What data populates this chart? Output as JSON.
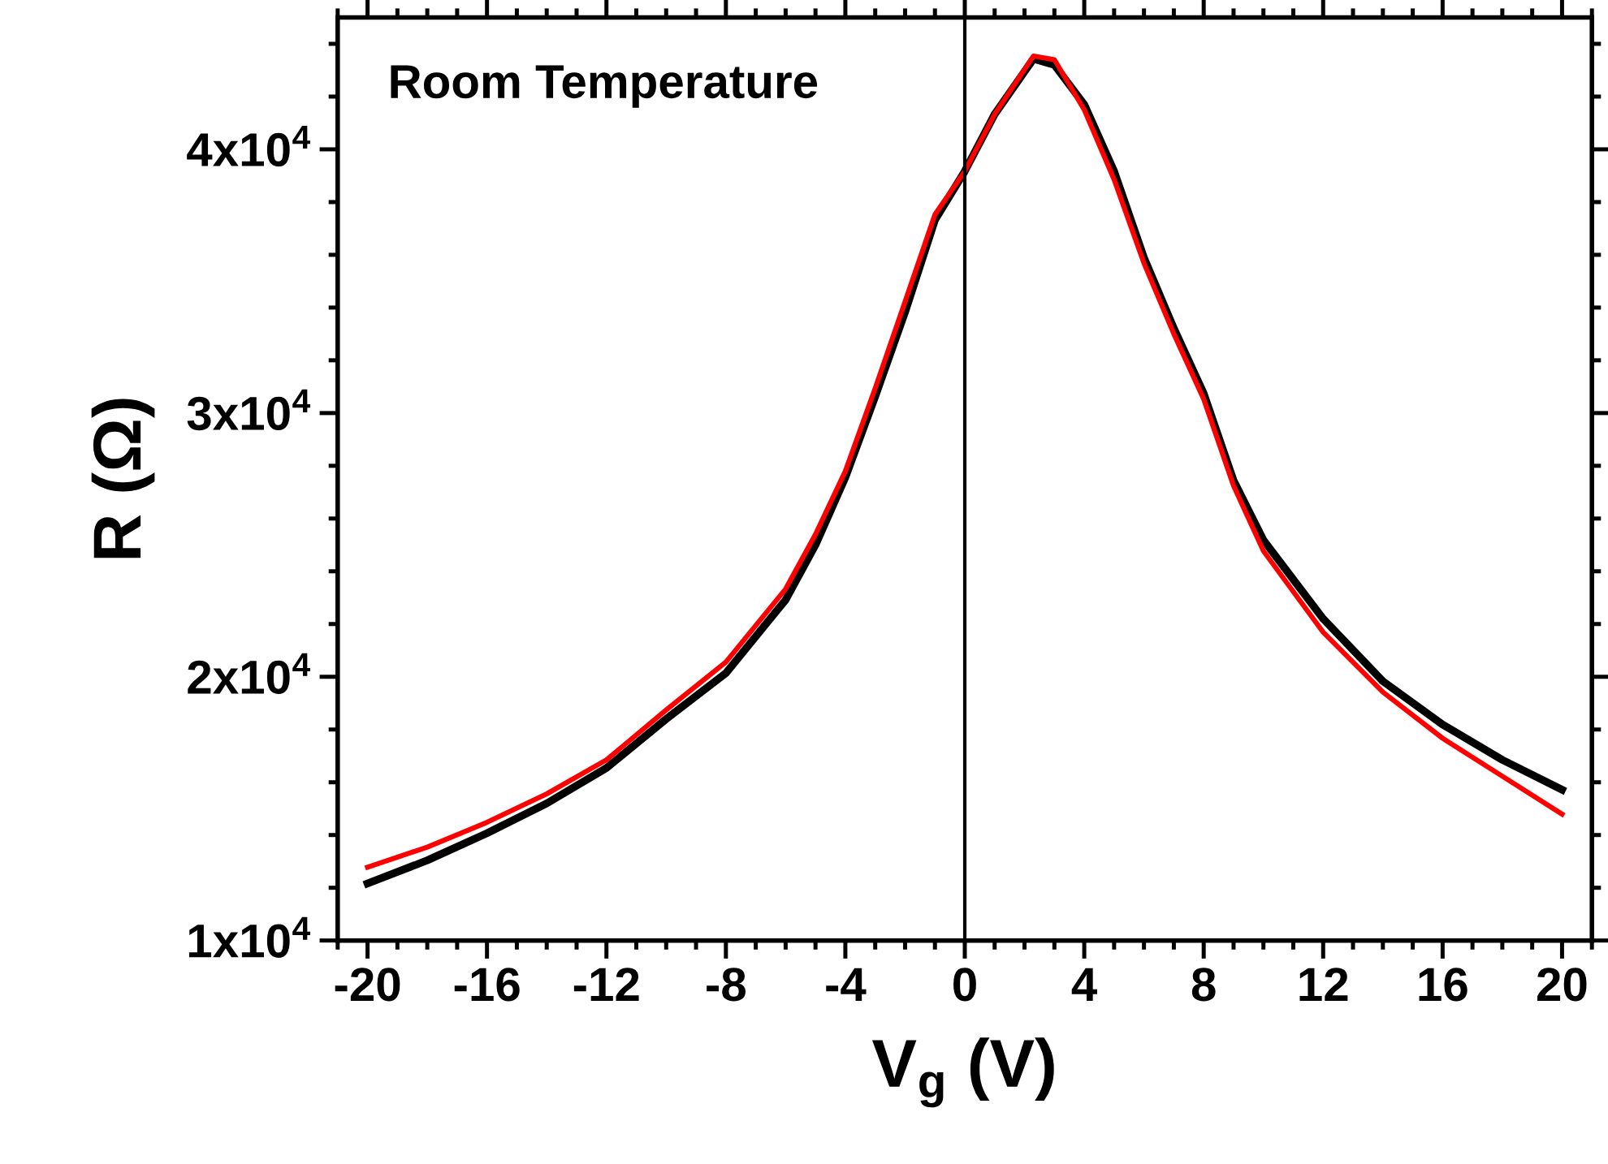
{
  "chart_data": {
    "type": "line",
    "xlabel": "V$_{g}$ (V)",
    "ylabel": "R (Ω)",
    "annotations": [
      "Room Temperature"
    ],
    "x": [
      -20,
      -18,
      -16,
      -14,
      -12,
      -10,
      -8,
      -6,
      -5,
      -4,
      -3,
      -2,
      -1,
      0,
      1,
      2.3,
      3,
      4,
      5,
      6,
      7,
      8,
      9,
      10,
      12,
      14,
      16,
      18,
      20
    ],
    "series": [
      {
        "color": "#000000",
        "values": [
          12160,
          13040,
          14070,
          15200,
          16540,
          18400,
          20140,
          22920,
          25000,
          27560,
          30630,
          33830,
          37320,
          39170,
          41330,
          43430,
          43200,
          41700,
          39170,
          35890,
          33210,
          30740,
          27440,
          25180,
          22200,
          19830,
          18190,
          16850,
          15720
        ]
      },
      {
        "color": "#ff0000",
        "values": [
          12780,
          13540,
          14480,
          15560,
          16850,
          18740,
          20560,
          23330,
          25400,
          27800,
          30940,
          34230,
          37530,
          39170,
          41330,
          43540,
          43400,
          41500,
          38850,
          35680,
          33000,
          30530,
          27240,
          24770,
          21690,
          19420,
          17670,
          16230,
          14790
        ]
      }
    ],
    "xlim": [
      -21,
      21
    ],
    "xticks": [
      -20,
      -16,
      -12,
      -8,
      -4,
      0,
      4,
      8,
      12,
      16,
      20
    ],
    "ylim": [
      10000,
      45000
    ],
    "yticks": [
      {
        "value": 10000,
        "label": "1x10$^{4}$"
      },
      {
        "value": 20000,
        "label": "2x10$^{4}$"
      },
      {
        "value": 30000,
        "label": "3x10$^{4}$"
      },
      {
        "value": 40000,
        "label": "4x10$^{4}$"
      }
    ],
    "ref_lines": [
      {
        "axis": "x",
        "value": 0,
        "color": "#000000"
      }
    ],
    "grid": false,
    "legend": false,
    "marker": "none",
    "line_style": "solid"
  }
}
